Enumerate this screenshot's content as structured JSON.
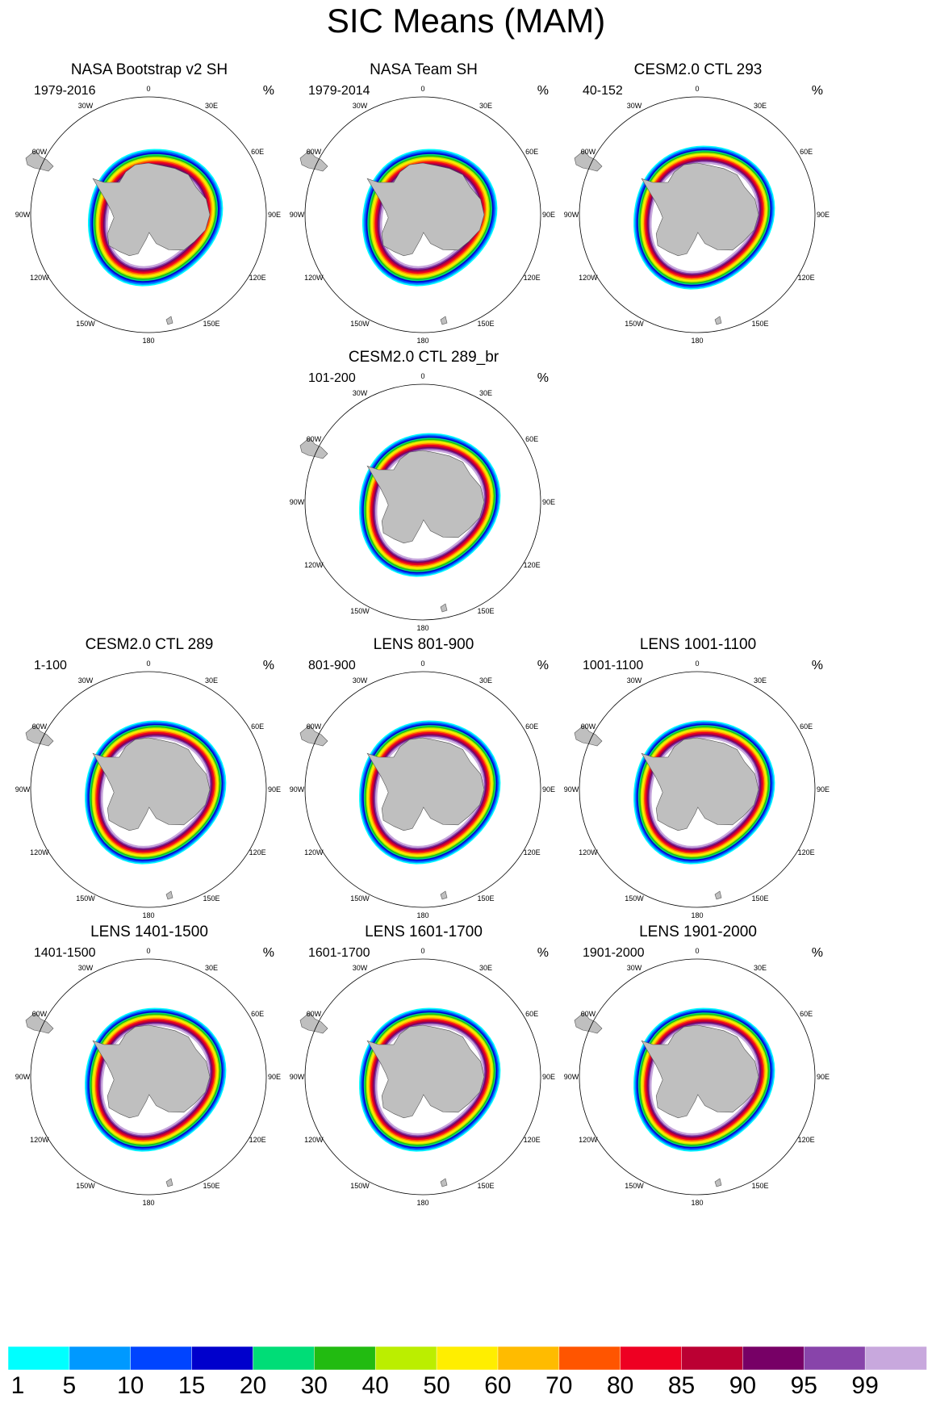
{
  "title": "SIC Means (MAM)",
  "units": "%",
  "panels": [
    {
      "title": "NASA Bootstrap v2 SH",
      "subtitle": "1979-2016",
      "units": "%",
      "style": "obs"
    },
    {
      "title": "NASA Team SH",
      "subtitle": "1979-2014",
      "units": "%",
      "style": "obs"
    },
    {
      "title": "CESM2.0 CTL 293",
      "subtitle": "40-152",
      "units": "%",
      "style": "model"
    },
    {
      "title": "CESM2.0 CTL 289_br",
      "subtitle": "101-200",
      "units": "%",
      "style": "model"
    },
    {
      "title": "CESM2.0 CTL 289",
      "subtitle": "1-100",
      "units": "%",
      "style": "model"
    },
    {
      "title": "LENS 801-900",
      "subtitle": "801-900",
      "units": "%",
      "style": "lens"
    },
    {
      "title": "LENS 1001-1100",
      "subtitle": "1001-1100",
      "units": "%",
      "style": "lens"
    },
    {
      "title": "LENS 1401-1500",
      "subtitle": "1401-1500",
      "units": "%",
      "style": "lens"
    },
    {
      "title": "LENS 1601-1700",
      "subtitle": "1601-1700",
      "units": "%",
      "style": "lens"
    },
    {
      "title": "LENS 1901-2000",
      "subtitle": "1901-2000",
      "units": "%",
      "style": "lens"
    }
  ],
  "lon_labels": [
    "0",
    "30E",
    "60E",
    "90E",
    "120E",
    "150E",
    "180",
    "150W",
    "120W",
    "90W",
    "60W",
    "30W"
  ],
  "colorbar": {
    "levels": [
      "1",
      "5",
      "10",
      "15",
      "20",
      "30",
      "40",
      "50",
      "60",
      "70",
      "80",
      "85",
      "90",
      "95",
      "99"
    ],
    "colors": [
      "#00ffff",
      "#0099ff",
      "#0044ff",
      "#0000cc",
      "#00dd77",
      "#22bb11",
      "#bbee00",
      "#ffee00",
      "#ffbb00",
      "#ff5500",
      "#ee0022",
      "#bb0033",
      "#770066",
      "#8844aa",
      "#c8a8dd"
    ]
  },
  "chart_data": {
    "type": "map",
    "projection": "south polar stereographic",
    "variable": "Sea ice concentration",
    "units": "%",
    "title": "SIC Means (MAM)",
    "contour_levels": [
      1,
      5,
      10,
      15,
      20,
      30,
      40,
      50,
      60,
      70,
      80,
      85,
      90,
      95,
      99
    ]
  }
}
